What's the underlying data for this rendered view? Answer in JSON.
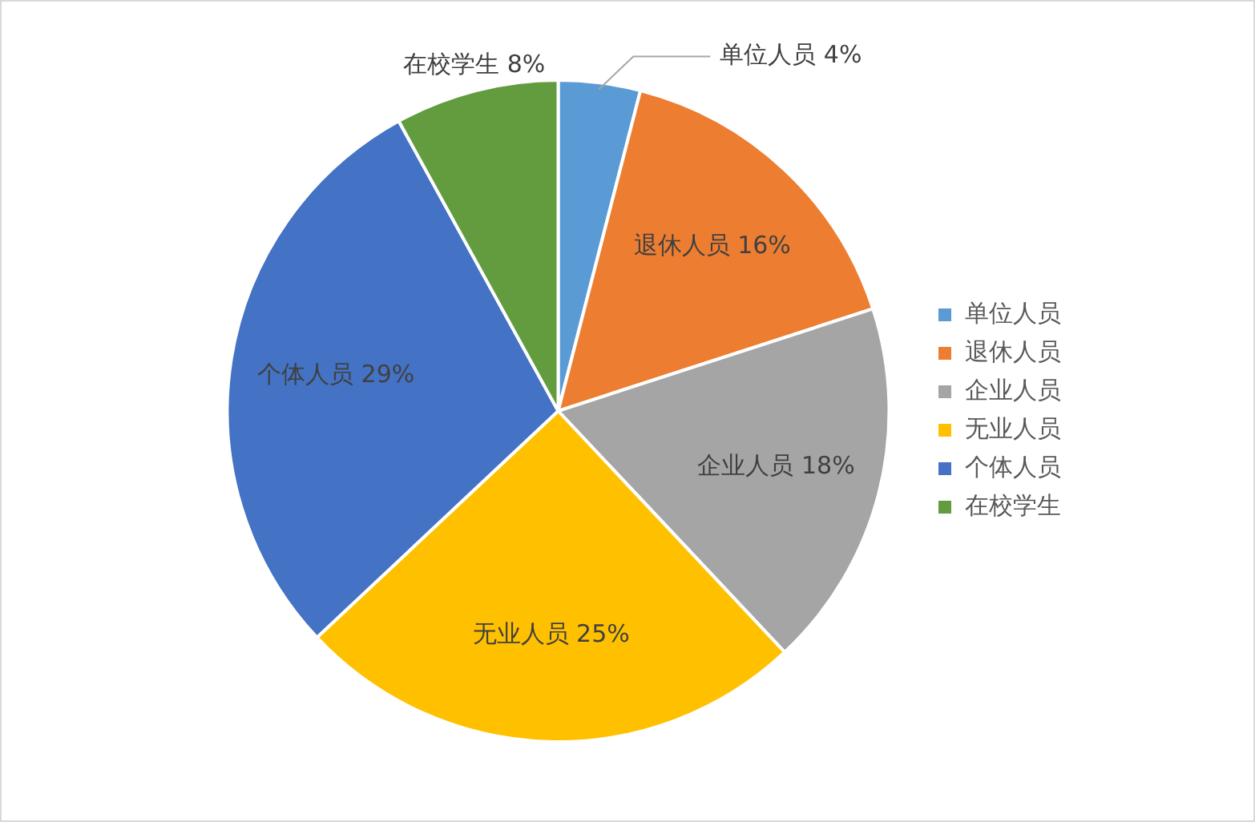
{
  "chart_data": {
    "type": "pie",
    "categories": [
      "单位人员",
      "退休人员",
      "企业人员",
      "无业人员",
      "个体人员",
      "在校学生"
    ],
    "values": [
      4,
      16,
      18,
      25,
      29,
      8
    ],
    "colors": [
      "#5b9bd5",
      "#ed7d31",
      "#a5a5a5",
      "#ffc000",
      "#4472c4",
      "#629c3f"
    ],
    "value_labels": [
      "单位人员 4%",
      "退休人员 16%",
      "企业人员 18%",
      "无业人员 25%",
      "个体人员 29%",
      "在校学生 8%"
    ],
    "legend": "right"
  }
}
